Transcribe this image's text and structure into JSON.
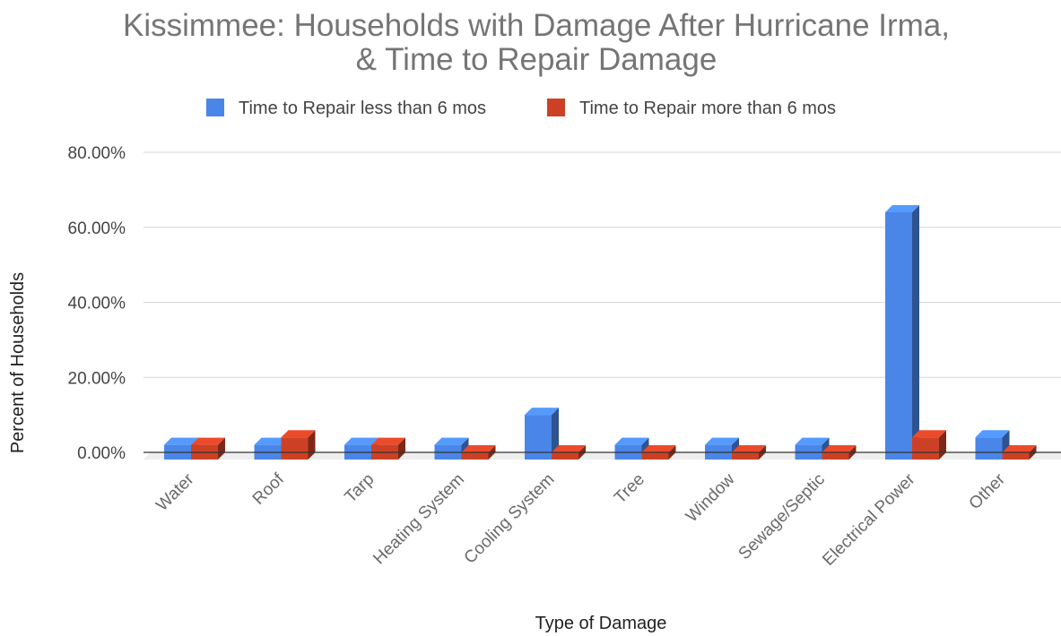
{
  "chart_data": {
    "type": "bar",
    "title_lines": [
      "Kissimmee: Households with Damage After Hurricane Irma,",
      "& Time to Repair Damage"
    ],
    "xlabel": "Type of Damage",
    "ylabel": "Percent of Households",
    "categories": [
      "Water",
      "Roof",
      "Tarp",
      "Heating System",
      "Cooling System",
      "Tree",
      "Window",
      "Sewage/Septic",
      "Electrical Power",
      "Other"
    ],
    "series": [
      {
        "name": "Time to Repair less than 6 mos",
        "color": "#4a86e8",
        "values": [
          2.0,
          2.0,
          2.0,
          2.0,
          10.0,
          2.0,
          2.0,
          2.0,
          64.0,
          4.0
        ]
      },
      {
        "name": "Time to Repair more than 6 mos",
        "color": "#cc4125",
        "values": [
          2.0,
          4.0,
          2.0,
          0.0,
          0.0,
          0.0,
          0.0,
          0.0,
          4.0,
          0.0
        ]
      }
    ],
    "ylim": [
      0,
      80
    ],
    "yticks": [
      0,
      20,
      40,
      60,
      80
    ],
    "ytick_labels": [
      "0.00%",
      "20.00%",
      "40.00%",
      "60.00%",
      "80.00%"
    ],
    "grid": true,
    "legend_position": "top",
    "style": "3d-bar"
  }
}
